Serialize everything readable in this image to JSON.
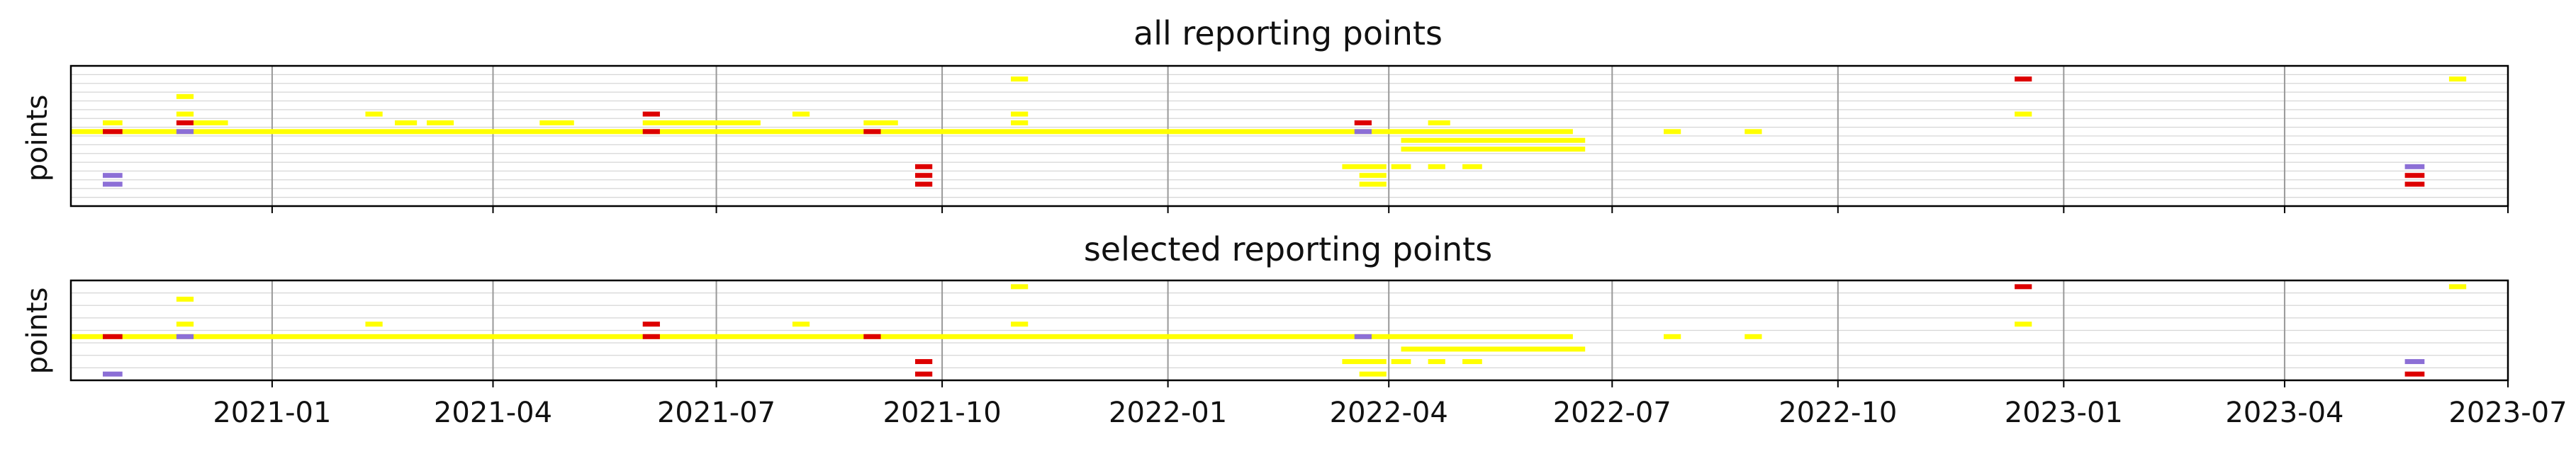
{
  "chart_data": {
    "type": "timeline",
    "x_ticks": [
      "2021-01",
      "2021-04",
      "2021-07",
      "2021-10",
      "2022-01",
      "2022-04",
      "2022-07",
      "2022-10",
      "2023-01",
      "2023-04",
      "2023-07"
    ],
    "xlim": [
      "2020-10-11",
      "2023-07-01"
    ],
    "panels": [
      {
        "title": "all reporting points",
        "ylabel": "points",
        "rows": 16,
        "grid": true,
        "segments": [
          {
            "row": 1,
            "start": "2021-10-29",
            "end": "2021-11-05",
            "color": "yellow"
          },
          {
            "row": 1,
            "start": "2022-12-12",
            "end": "2022-12-19",
            "color": "red"
          },
          {
            "row": 1,
            "start": "2023-06-07",
            "end": "2023-06-14",
            "color": "yellow"
          },
          {
            "row": 3,
            "start": "2020-11-23",
            "end": "2020-11-30",
            "color": "yellow"
          },
          {
            "row": 5,
            "start": "2020-11-23",
            "end": "2020-11-30",
            "color": "yellow"
          },
          {
            "row": 5,
            "start": "2021-02-08",
            "end": "2021-02-15",
            "color": "yellow"
          },
          {
            "row": 5,
            "start": "2021-06-01",
            "end": "2021-06-08",
            "color": "red"
          },
          {
            "row": 5,
            "start": "2021-08-01",
            "end": "2021-08-08",
            "color": "yellow"
          },
          {
            "row": 5,
            "start": "2021-10-29",
            "end": "2021-11-05",
            "color": "yellow"
          },
          {
            "row": 5,
            "start": "2022-12-12",
            "end": "2022-12-19",
            "color": "yellow"
          },
          {
            "row": 6,
            "start": "2020-10-24",
            "end": "2020-11-01",
            "color": "yellow"
          },
          {
            "row": 6,
            "start": "2020-11-23",
            "end": "2020-11-30",
            "color": "red"
          },
          {
            "row": 6,
            "start": "2020-11-30",
            "end": "2020-12-14",
            "color": "yellow"
          },
          {
            "row": 6,
            "start": "2021-02-20",
            "end": "2021-03-01",
            "color": "yellow"
          },
          {
            "row": 6,
            "start": "2021-03-05",
            "end": "2021-03-16",
            "color": "yellow"
          },
          {
            "row": 6,
            "start": "2021-04-20",
            "end": "2021-05-04",
            "color": "yellow"
          },
          {
            "row": 6,
            "start": "2021-06-01",
            "end": "2021-07-19",
            "color": "yellow"
          },
          {
            "row": 6,
            "start": "2021-08-30",
            "end": "2021-09-13",
            "color": "yellow"
          },
          {
            "row": 6,
            "start": "2021-10-29",
            "end": "2021-11-05",
            "color": "yellow"
          },
          {
            "row": 6,
            "start": "2022-03-18",
            "end": "2022-03-25",
            "color": "red"
          },
          {
            "row": 6,
            "start": "2022-04-17",
            "end": "2022-04-26",
            "color": "yellow"
          },
          {
            "row": 7,
            "start": "2020-10-11",
            "end": "2022-06-15",
            "color": "yellow"
          },
          {
            "row": 7,
            "start": "2020-10-24",
            "end": "2020-11-01",
            "color": "red"
          },
          {
            "row": 7,
            "start": "2020-11-23",
            "end": "2020-11-30",
            "color": "blue"
          },
          {
            "row": 7,
            "start": "2021-06-01",
            "end": "2021-06-08",
            "color": "red"
          },
          {
            "row": 7,
            "start": "2021-08-30",
            "end": "2021-09-06",
            "color": "red"
          },
          {
            "row": 7,
            "start": "2022-03-18",
            "end": "2022-03-25",
            "color": "blue"
          },
          {
            "row": 7,
            "start": "2022-07-22",
            "end": "2022-07-29",
            "color": "yellow"
          },
          {
            "row": 7,
            "start": "2022-08-24",
            "end": "2022-08-31",
            "color": "yellow"
          },
          {
            "row": 8,
            "start": "2022-04-06",
            "end": "2022-06-20",
            "color": "yellow"
          },
          {
            "row": 9,
            "start": "2022-04-06",
            "end": "2022-06-20",
            "color": "yellow"
          },
          {
            "row": 11,
            "start": "2021-09-20",
            "end": "2021-09-27",
            "color": "red"
          },
          {
            "row": 11,
            "start": "2022-03-13",
            "end": "2022-03-31",
            "color": "yellow"
          },
          {
            "row": 11,
            "start": "2022-04-02",
            "end": "2022-04-10",
            "color": "yellow"
          },
          {
            "row": 11,
            "start": "2022-04-17",
            "end": "2022-04-24",
            "color": "yellow"
          },
          {
            "row": 11,
            "start": "2022-05-01",
            "end": "2022-05-09",
            "color": "yellow"
          },
          {
            "row": 11,
            "start": "2023-05-20",
            "end": "2023-05-28",
            "color": "blue"
          },
          {
            "row": 12,
            "start": "2020-10-24",
            "end": "2020-11-01",
            "color": "blue"
          },
          {
            "row": 12,
            "start": "2021-09-20",
            "end": "2021-09-27",
            "color": "red"
          },
          {
            "row": 12,
            "start": "2022-03-20",
            "end": "2022-03-31",
            "color": "yellow"
          },
          {
            "row": 12,
            "start": "2023-05-20",
            "end": "2023-05-28",
            "color": "red"
          },
          {
            "row": 13,
            "start": "2020-10-24",
            "end": "2020-11-01",
            "color": "blue"
          },
          {
            "row": 13,
            "start": "2021-09-20",
            "end": "2021-09-27",
            "color": "red"
          },
          {
            "row": 13,
            "start": "2022-03-20",
            "end": "2022-03-31",
            "color": "yellow"
          },
          {
            "row": 13,
            "start": "2023-05-20",
            "end": "2023-05-28",
            "color": "red"
          }
        ]
      },
      {
        "title": "selected reporting points",
        "ylabel": "points",
        "rows": 8,
        "grid": true,
        "segments": [
          {
            "row": 0,
            "start": "2021-10-29",
            "end": "2021-11-05",
            "color": "yellow"
          },
          {
            "row": 0,
            "start": "2022-12-12",
            "end": "2022-12-19",
            "color": "red"
          },
          {
            "row": 0,
            "start": "2023-06-07",
            "end": "2023-06-14",
            "color": "yellow"
          },
          {
            "row": 1,
            "start": "2020-11-23",
            "end": "2020-11-30",
            "color": "yellow"
          },
          {
            "row": 3,
            "start": "2020-11-23",
            "end": "2020-11-30",
            "color": "yellow"
          },
          {
            "row": 3,
            "start": "2021-02-08",
            "end": "2021-02-15",
            "color": "yellow"
          },
          {
            "row": 3,
            "start": "2021-06-01",
            "end": "2021-06-08",
            "color": "red"
          },
          {
            "row": 3,
            "start": "2021-08-01",
            "end": "2021-08-08",
            "color": "yellow"
          },
          {
            "row": 3,
            "start": "2021-10-29",
            "end": "2021-11-05",
            "color": "yellow"
          },
          {
            "row": 3,
            "start": "2022-12-12",
            "end": "2022-12-19",
            "color": "yellow"
          },
          {
            "row": 4,
            "start": "2020-10-11",
            "end": "2022-06-15",
            "color": "yellow"
          },
          {
            "row": 4,
            "start": "2020-10-24",
            "end": "2020-11-01",
            "color": "red"
          },
          {
            "row": 4,
            "start": "2020-11-23",
            "end": "2020-11-30",
            "color": "blue"
          },
          {
            "row": 4,
            "start": "2021-06-01",
            "end": "2021-06-08",
            "color": "red"
          },
          {
            "row": 4,
            "start": "2021-08-30",
            "end": "2021-09-06",
            "color": "red"
          },
          {
            "row": 4,
            "start": "2022-03-18",
            "end": "2022-03-25",
            "color": "blue"
          },
          {
            "row": 4,
            "start": "2022-07-22",
            "end": "2022-07-29",
            "color": "yellow"
          },
          {
            "row": 4,
            "start": "2022-08-24",
            "end": "2022-08-31",
            "color": "yellow"
          },
          {
            "row": 5,
            "start": "2022-04-06",
            "end": "2022-06-20",
            "color": "yellow"
          },
          {
            "row": 6,
            "start": "2021-09-20",
            "end": "2021-09-27",
            "color": "red"
          },
          {
            "row": 6,
            "start": "2022-03-13",
            "end": "2022-03-31",
            "color": "yellow"
          },
          {
            "row": 6,
            "start": "2022-04-02",
            "end": "2022-04-10",
            "color": "yellow"
          },
          {
            "row": 6,
            "start": "2022-04-17",
            "end": "2022-04-24",
            "color": "yellow"
          },
          {
            "row": 6,
            "start": "2022-05-01",
            "end": "2022-05-09",
            "color": "yellow"
          },
          {
            "row": 6,
            "start": "2023-05-20",
            "end": "2023-05-28",
            "color": "blue"
          },
          {
            "row": 7,
            "start": "2020-10-24",
            "end": "2020-11-01",
            "color": "blue"
          },
          {
            "row": 7,
            "start": "2021-09-20",
            "end": "2021-09-27",
            "color": "red"
          },
          {
            "row": 7,
            "start": "2022-03-20",
            "end": "2022-03-31",
            "color": "yellow"
          },
          {
            "row": 7,
            "start": "2023-05-20",
            "end": "2023-05-28",
            "color": "red"
          }
        ]
      }
    ]
  },
  "colors": {
    "yellow": "#ffff00",
    "red": "#dd0000",
    "blue": "#8c6fd6",
    "grid": "#d6d6d6",
    "month_grid": "#999999",
    "axis": "#000000"
  }
}
